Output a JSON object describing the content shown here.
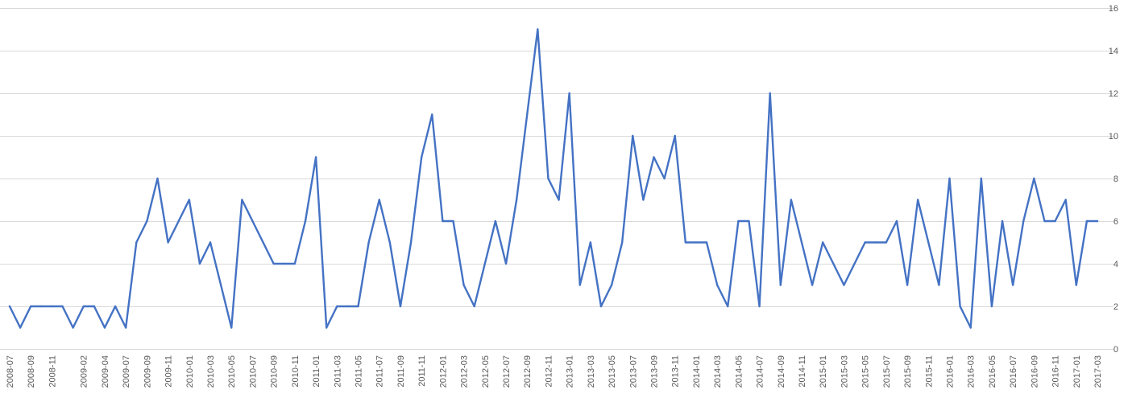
{
  "chart_data": {
    "type": "line",
    "title": "",
    "xlabel": "",
    "ylabel": "",
    "ylim": [
      0,
      16
    ],
    "yticks": [
      0,
      2,
      4,
      6,
      8,
      10,
      12,
      14,
      16
    ],
    "grid": true,
    "legend": "none",
    "colors": {
      "series": "#4472c4",
      "grid": "#d9d9d9",
      "tick_text": "#595959"
    },
    "x": [
      "2008-07",
      "2008-08",
      "2008-09",
      "2008-10",
      "2008-11",
      "2008-12",
      "2009-01",
      "2009-02",
      "2009-03",
      "2009-04",
      "2009-05",
      "2009-07",
      "2009-08",
      "2009-09",
      "2009-10",
      "2009-11",
      "2009-12",
      "2010-01",
      "2010-02",
      "2010-03",
      "2010-04",
      "2010-05",
      "2010-06",
      "2010-07",
      "2010-08",
      "2010-09",
      "2010-10",
      "2010-11",
      "2010-12",
      "2011-01",
      "2011-02",
      "2011-03",
      "2011-04",
      "2011-05",
      "2011-06",
      "2011-07",
      "2011-08",
      "2011-09",
      "2011-10",
      "2011-11",
      "2011-12",
      "2012-01",
      "2012-02",
      "2012-03",
      "2012-04",
      "2012-05",
      "2012-06",
      "2012-07",
      "2012-08",
      "2012-09",
      "2012-10",
      "2012-11",
      "2012-12",
      "2013-01",
      "2013-02",
      "2013-03",
      "2013-04",
      "2013-05",
      "2013-06",
      "2013-07",
      "2013-08",
      "2013-09",
      "2013-10",
      "2013-11",
      "2013-12",
      "2014-01",
      "2014-02",
      "2014-03",
      "2014-04",
      "2014-05",
      "2014-06",
      "2014-07",
      "2014-08",
      "2014-09",
      "2014-10",
      "2014-11",
      "2014-12",
      "2015-01",
      "2015-02",
      "2015-03",
      "2015-04",
      "2015-05",
      "2015-06",
      "2015-07",
      "2015-08",
      "2015-09",
      "2015-10",
      "2015-11",
      "2015-12",
      "2016-01",
      "2016-02",
      "2016-03",
      "2016-04",
      "2016-05",
      "2016-06",
      "2016-07",
      "2016-08",
      "2016-09",
      "2016-10",
      "2016-11",
      "2016-12",
      "2017-01",
      "2017-02",
      "2017-03"
    ],
    "x_tick_labels": [
      "2008-07",
      "2008-09",
      "2008-11",
      "2009-02",
      "2009-04",
      "2009-07",
      "2009-09",
      "2009-11",
      "2010-01",
      "2010-03",
      "2010-05",
      "2010-07",
      "2010-09",
      "2010-11",
      "2011-01",
      "2011-03",
      "2011-05",
      "2011-07",
      "2011-09",
      "2011-11",
      "2012-01",
      "2012-03",
      "2012-05",
      "2012-07",
      "2012-09",
      "2012-11",
      "2013-01",
      "2013-03",
      "2013-05",
      "2013-07",
      "2013-09",
      "2013-11",
      "2014-01",
      "2014-03",
      "2014-05",
      "2014-07",
      "2014-09",
      "2014-11",
      "2015-01",
      "2015-03",
      "2015-05",
      "2015-07",
      "2015-09",
      "2015-11",
      "2016-01",
      "2016-03",
      "2016-05",
      "2016-07",
      "2016-09",
      "2016-11",
      "2017-01",
      "2017-03"
    ],
    "series": [
      {
        "values": [
          2,
          1,
          2,
          2,
          2,
          2,
          1,
          2,
          2,
          1,
          2,
          1,
          5,
          6,
          8,
          5,
          6,
          7,
          4,
          5,
          3,
          1,
          7,
          6,
          5,
          4,
          4,
          4,
          6,
          9,
          1,
          2,
          2,
          2,
          5,
          7,
          5,
          2,
          5,
          9,
          11,
          6,
          6,
          3,
          2,
          4,
          6,
          4,
          7,
          11,
          15,
          8,
          7,
          12,
          3,
          5,
          2,
          3,
          5,
          10,
          7,
          9,
          8,
          10,
          5,
          5,
          5,
          3,
          2,
          6,
          6,
          2,
          12,
          3,
          7,
          5,
          3,
          5,
          4,
          3,
          4,
          5,
          5,
          5,
          6,
          3,
          7,
          5,
          3,
          8,
          2,
          1,
          8,
          2,
          6,
          3,
          6,
          8,
          6,
          6,
          7,
          3,
          6,
          6
        ]
      }
    ]
  }
}
